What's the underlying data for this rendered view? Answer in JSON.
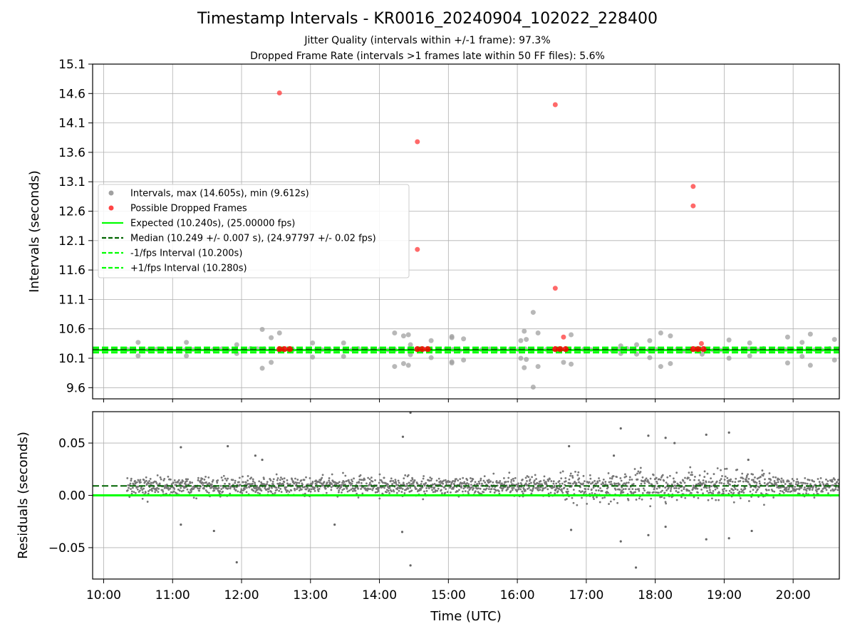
{
  "chart_data": [
    {
      "type": "scatter",
      "panel": "top",
      "title": "Timestamp Intervals - KR0016_20240904_102022_228400",
      "subtitle_1": "Jitter Quality (intervals within +/-1 frame): 97.3%",
      "subtitle_2": "Dropped Frame Rate (intervals >1 frames late within 50 FF files): 5.6%",
      "ylabel": "Intervals (seconds)",
      "ylim": [
        9.41,
        15.1
      ],
      "yticks": [
        "9.6",
        "10.1",
        "10.6",
        "11.1",
        "11.6",
        "12.1",
        "12.6",
        "13.1",
        "13.6",
        "14.1",
        "14.6",
        "15.1"
      ],
      "ytick_values": [
        9.6,
        10.1,
        10.6,
        11.1,
        11.6,
        12.1,
        12.6,
        13.1,
        13.6,
        14.1,
        14.6,
        15.1
      ],
      "xlim_hours": [
        9.84,
        20.67
      ],
      "grid": true,
      "legend_placement": "center-left",
      "legend": [
        {
          "label": "Intervals, max (14.605s), min (9.612s)",
          "kind": "marker",
          "color": "#a0a0a0"
        },
        {
          "label": "Possible Dropped Frames",
          "kind": "marker",
          "color": "#ff4444"
        },
        {
          "label": "Expected (10.240s), (25.00000 fps)",
          "kind": "line",
          "color": "#00ff00",
          "dash": "solid"
        },
        {
          "label": "Median (10.249 +/- 0.007 s), (24.97797 +/- 0.02 fps)",
          "kind": "line",
          "color": "#006400",
          "dash": "dashed"
        },
        {
          "label": "-1/fps Interval (10.200s)",
          "kind": "line",
          "color": "#00ff00",
          "dash": "dashed"
        },
        {
          "label": "+1/fps Interval (10.280s)",
          "kind": "line",
          "color": "#00ff00",
          "dash": "dashed"
        }
      ],
      "lines": {
        "expected": 10.24,
        "median": 10.249,
        "minus_1fps": 10.2,
        "plus_1fps": 10.28
      },
      "dropped_frames": [
        {
          "x": 12.55,
          "y": 14.61
        },
        {
          "x": 14.55,
          "y": 13.78
        },
        {
          "x": 14.55,
          "y": 11.95
        },
        {
          "x": 16.55,
          "y": 14.41
        },
        {
          "x": 16.55,
          "y": 11.29
        },
        {
          "x": 16.67,
          "y": 10.46
        },
        {
          "x": 18.55,
          "y": 13.02
        },
        {
          "x": 18.55,
          "y": 12.69
        },
        {
          "x": 18.67,
          "y": 10.35
        }
      ],
      "dropped_clusters": [
        12.55,
        12.62,
        12.7,
        14.55,
        14.62,
        14.7,
        16.55,
        16.62,
        16.7,
        18.55,
        18.62,
        18.7
      ],
      "outlier_intervals": [
        {
          "x": 10.5,
          "y": 10.37
        },
        {
          "x": 10.5,
          "y": 10.14
        },
        {
          "x": 11.2,
          "y": 10.37
        },
        {
          "x": 11.2,
          "y": 10.14
        },
        {
          "x": 11.93,
          "y": 10.33
        },
        {
          "x": 11.93,
          "y": 10.18
        },
        {
          "x": 12.3,
          "y": 10.59
        },
        {
          "x": 12.3,
          "y": 9.93
        },
        {
          "x": 12.43,
          "y": 10.45
        },
        {
          "x": 12.43,
          "y": 10.03
        },
        {
          "x": 12.55,
          "y": 10.53
        },
        {
          "x": 13.03,
          "y": 10.36
        },
        {
          "x": 13.03,
          "y": 10.12
        },
        {
          "x": 13.48,
          "y": 10.36
        },
        {
          "x": 13.48,
          "y": 10.13
        },
        {
          "x": 14.22,
          "y": 10.53
        },
        {
          "x": 14.22,
          "y": 9.96
        },
        {
          "x": 14.35,
          "y": 10.48
        },
        {
          "x": 14.35,
          "y": 10.01
        },
        {
          "x": 14.42,
          "y": 10.5
        },
        {
          "x": 14.42,
          "y": 9.98
        },
        {
          "x": 14.45,
          "y": 10.33
        },
        {
          "x": 14.45,
          "y": 10.16
        },
        {
          "x": 14.75,
          "y": 10.4
        },
        {
          "x": 14.75,
          "y": 10.11
        },
        {
          "x": 15.05,
          "y": 10.47
        },
        {
          "x": 15.05,
          "y": 10.02
        },
        {
          "x": 15.05,
          "y": 10.45
        },
        {
          "x": 15.05,
          "y": 10.04
        },
        {
          "x": 15.22,
          "y": 10.43
        },
        {
          "x": 15.22,
          "y": 10.07
        },
        {
          "x": 16.05,
          "y": 10.4
        },
        {
          "x": 16.05,
          "y": 10.1
        },
        {
          "x": 16.1,
          "y": 10.56
        },
        {
          "x": 16.1,
          "y": 9.94
        },
        {
          "x": 16.13,
          "y": 10.42
        },
        {
          "x": 16.13,
          "y": 10.08
        },
        {
          "x": 16.23,
          "y": 10.88
        },
        {
          "x": 16.23,
          "y": 9.61
        },
        {
          "x": 16.3,
          "y": 10.53
        },
        {
          "x": 16.3,
          "y": 9.96
        },
        {
          "x": 16.67,
          "y": 10.03
        },
        {
          "x": 16.78,
          "y": 10.5
        },
        {
          "x": 16.78,
          "y": 10.0
        },
        {
          "x": 17.5,
          "y": 10.31
        },
        {
          "x": 17.5,
          "y": 10.18
        },
        {
          "x": 17.73,
          "y": 10.33
        },
        {
          "x": 17.73,
          "y": 10.17
        },
        {
          "x": 17.92,
          "y": 10.4
        },
        {
          "x": 17.92,
          "y": 10.11
        },
        {
          "x": 18.08,
          "y": 10.53
        },
        {
          "x": 18.08,
          "y": 9.96
        },
        {
          "x": 18.22,
          "y": 10.48
        },
        {
          "x": 18.22,
          "y": 10.01
        },
        {
          "x": 18.68,
          "y": 10.17
        },
        {
          "x": 19.07,
          "y": 10.41
        },
        {
          "x": 19.07,
          "y": 10.1
        },
        {
          "x": 19.37,
          "y": 10.36
        },
        {
          "x": 19.37,
          "y": 10.14
        },
        {
          "x": 19.92,
          "y": 10.46
        },
        {
          "x": 19.92,
          "y": 10.02
        },
        {
          "x": 20.13,
          "y": 10.37
        },
        {
          "x": 20.13,
          "y": 10.13
        },
        {
          "x": 20.25,
          "y": 10.51
        },
        {
          "x": 20.25,
          "y": 9.98
        },
        {
          "x": 20.6,
          "y": 10.42
        },
        {
          "x": 20.6,
          "y": 10.07
        }
      ]
    },
    {
      "type": "scatter",
      "panel": "bottom",
      "xlabel": "Time (UTC)",
      "ylabel": "Residuals (seconds)",
      "ylim": [
        -0.08,
        0.08
      ],
      "yticks": [
        "0.05",
        "0.00",
        "−0.05"
      ],
      "ytick_values": [
        0.05,
        0.0,
        -0.05
      ],
      "xticks": [
        "10:00",
        "11:00",
        "12:00",
        "13:00",
        "14:00",
        "15:00",
        "16:00",
        "17:00",
        "18:00",
        "19:00",
        "20:00"
      ],
      "xtick_hours": [
        10,
        11,
        12,
        13,
        14,
        15,
        16,
        17,
        18,
        19,
        20
      ],
      "xlim_hours": [
        9.84,
        20.67
      ],
      "grid": true,
      "data_start_hour": 10.34,
      "lines": {
        "zero": 0.0,
        "median_offset": 0.009
      },
      "residual_outliers": [
        {
          "x": 11.12,
          "y": 0.046
        },
        {
          "x": 11.12,
          "y": -0.028
        },
        {
          "x": 11.6,
          "y": -0.034
        },
        {
          "x": 11.8,
          "y": 0.047
        },
        {
          "x": 11.93,
          "y": -0.064
        },
        {
          "x": 12.2,
          "y": 0.038
        },
        {
          "x": 12.3,
          "y": 0.034
        },
        {
          "x": 13.35,
          "y": -0.028
        },
        {
          "x": 14.33,
          "y": -0.035
        },
        {
          "x": 14.34,
          "y": 0.056
        },
        {
          "x": 14.45,
          "y": 0.079
        },
        {
          "x": 14.45,
          "y": -0.067
        },
        {
          "x": 16.75,
          "y": 0.047
        },
        {
          "x": 16.78,
          "y": -0.033
        },
        {
          "x": 17.4,
          "y": 0.038
        },
        {
          "x": 17.5,
          "y": 0.064
        },
        {
          "x": 17.5,
          "y": -0.044
        },
        {
          "x": 17.72,
          "y": -0.069
        },
        {
          "x": 17.9,
          "y": 0.057
        },
        {
          "x": 17.9,
          "y": -0.038
        },
        {
          "x": 18.15,
          "y": 0.055
        },
        {
          "x": 18.15,
          "y": -0.03
        },
        {
          "x": 18.28,
          "y": 0.05
        },
        {
          "x": 18.74,
          "y": 0.058
        },
        {
          "x": 18.74,
          "y": -0.042
        },
        {
          "x": 19.07,
          "y": 0.06
        },
        {
          "x": 19.07,
          "y": -0.041
        },
        {
          "x": 19.35,
          "y": 0.034
        },
        {
          "x": 19.4,
          "y": -0.034
        }
      ]
    }
  ]
}
